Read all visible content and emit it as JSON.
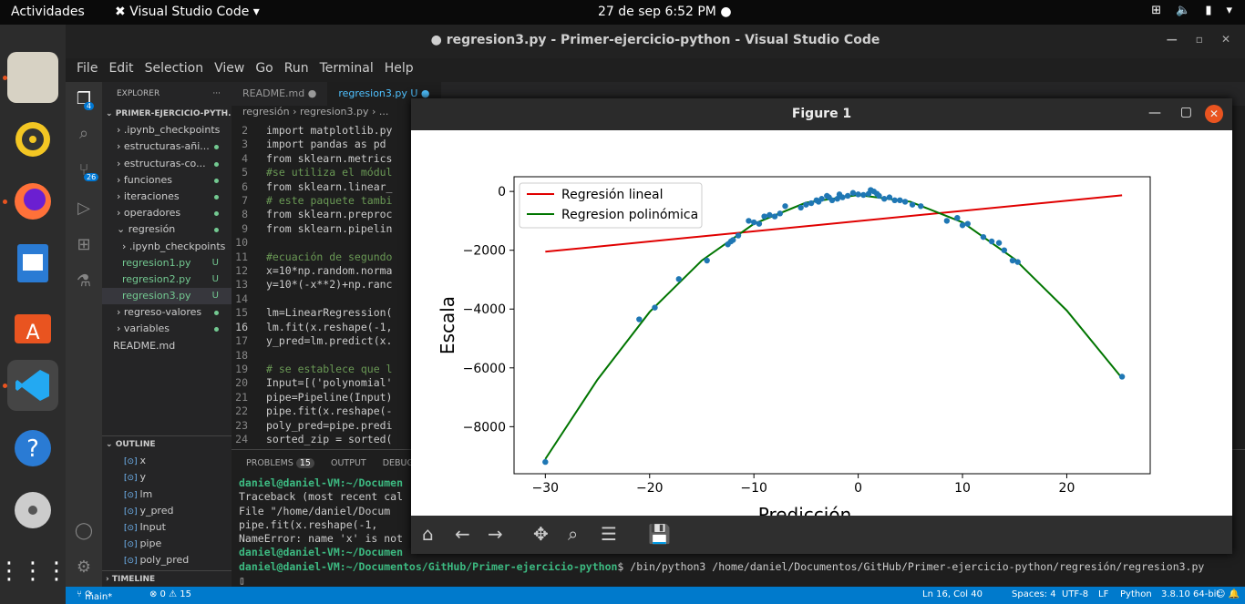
{
  "topbar": {
    "activities": "Actividades",
    "app": "Visual Studio Code",
    "clock": "27 de sep   6:52 PM"
  },
  "window": {
    "title": "● regresion3.py - Primer-ejercicio-python - Visual Studio Code"
  },
  "menu": [
    "File",
    "Edit",
    "Selection",
    "View",
    "Go",
    "Run",
    "Terminal",
    "Help"
  ],
  "activity": {
    "explorer_badge": "4",
    "scm_badge": "26"
  },
  "sidebar": {
    "header": "EXPLORER",
    "root": "PRIMER-EJERCICIO-PYTH...",
    "items": [
      {
        "label": "› .ipynb_checkpoints",
        "mark": ""
      },
      {
        "label": "› estructuras-añi...",
        "mark": "dot"
      },
      {
        "label": "› estructuras-co...",
        "mark": "dot"
      },
      {
        "label": "› funciones",
        "mark": "dot"
      },
      {
        "label": "› iteraciones",
        "mark": "dot"
      },
      {
        "label": "› operadores",
        "mark": "dot"
      },
      {
        "label": "⌄ regresión",
        "mark": "dot"
      },
      {
        "label": "› .ipynb_checkpoints",
        "mark": ""
      },
      {
        "label": "regresion1.py",
        "mark": "U"
      },
      {
        "label": "regresion2.py",
        "mark": "U"
      },
      {
        "label": "regresion3.py",
        "mark": "U"
      },
      {
        "label": "› regreso-valores",
        "mark": "dot"
      },
      {
        "label": "› variables",
        "mark": "dot"
      },
      {
        "label": "README.md",
        "mark": ""
      }
    ],
    "outline_header": "OUTLINE",
    "outline": [
      "x",
      "y",
      "lm",
      "y_pred",
      "Input",
      "pipe",
      "poly_pred"
    ],
    "timeline": "TIMELINE"
  },
  "tabs": [
    {
      "label": "README.md ●"
    },
    {
      "label": "regresion3.py U ●"
    }
  ],
  "breadcrumb": "regresión  ›  regresion3.py  ›  ...",
  "code": [
    {
      "n": "2",
      "t": "import matplotlib.py"
    },
    {
      "n": "3",
      "t": "import pandas as pd"
    },
    {
      "n": "4",
      "t": "from sklearn.metrics"
    },
    {
      "n": "5",
      "t": "#se utiliza el módul"
    },
    {
      "n": "6",
      "t": "from sklearn.linear_"
    },
    {
      "n": "7",
      "t": "# este paquete tambi"
    },
    {
      "n": "8",
      "t": "from sklearn.preproc"
    },
    {
      "n": "9",
      "t": "from sklearn.pipelin"
    },
    {
      "n": "10",
      "t": ""
    },
    {
      "n": "11",
      "t": "#ecuación de segundo"
    },
    {
      "n": "12",
      "t": "x=10*np.random.norma"
    },
    {
      "n": "13",
      "t": "y=10*(-x**2)+np.ranc"
    },
    {
      "n": "14",
      "t": ""
    },
    {
      "n": "15",
      "t": "lm=LinearRegression("
    },
    {
      "n": "16",
      "t": "lm.fit(x.reshape(-1,"
    },
    {
      "n": "17",
      "t": "y_pred=lm.predict(x."
    },
    {
      "n": "18",
      "t": ""
    },
    {
      "n": "19",
      "t": "# se establece que l"
    },
    {
      "n": "20",
      "t": "Input=[('polynomial'"
    },
    {
      "n": "21",
      "t": "pipe=Pipeline(Input)"
    },
    {
      "n": "22",
      "t": "pipe.fit(x.reshape(-"
    },
    {
      "n": "23",
      "t": "poly_pred=pipe.predi"
    },
    {
      "n": "24",
      "t": "sorted_zip = sorted("
    }
  ],
  "panel": {
    "problems": "PROBLEMS",
    "problems_count": "15",
    "output": "OUTPUT",
    "debug": "DEBUG"
  },
  "terminal": [
    {
      "prompt": "daniel@daniel-VM:~/Documen",
      "rest": ""
    },
    {
      "prompt": "",
      "rest": "Traceback (most recent cal"
    },
    {
      "prompt": "",
      "rest": "  File \"/home/daniel/Docum"
    },
    {
      "prompt": "",
      "rest": "    pipe.fit(x.reshape(-1,"
    },
    {
      "prompt": "",
      "rest": "NameError: name 'x' is not"
    },
    {
      "prompt": "daniel@daniel-VM:~/Documen",
      "rest": ""
    },
    {
      "prompt": "daniel@daniel-VM:~/Documentos/GitHub/Primer-ejercicio-python",
      "rest": "$ /bin/python3 /home/daniel/Documentos/GitHub/Primer-ejercicio-python/regresión/regresion3.py"
    }
  ],
  "status": {
    "branch": "main*",
    "errors": "⊗ 0 ⚠ 15",
    "pos": "Ln 16, Col 40",
    "spaces": "Spaces: 4",
    "enc": "UTF-8",
    "eol": "LF",
    "lang": "Python",
    "interp": "3.8.10 64-bit"
  },
  "figure": {
    "title": "Figure 1"
  },
  "chart_data": {
    "type": "scatter",
    "title": "",
    "xlabel": "Predicción",
    "ylabel": "Escala",
    "xlim": [
      -33,
      28
    ],
    "ylim": [
      -9600,
      500
    ],
    "xticks": [
      -30,
      -20,
      -10,
      0,
      10,
      20
    ],
    "yticks": [
      0,
      -2000,
      -4000,
      -6000,
      -8000
    ],
    "legend": {
      "position": "top-left",
      "entries": [
        {
          "name": "Regresión lineal",
          "color": "#e00000"
        },
        {
          "name": "Regresion polinómica",
          "color": "#007500"
        }
      ]
    },
    "point_color": "#1f77b4",
    "points": [
      [
        -30,
        -9200
      ],
      [
        -21,
        -4350
      ],
      [
        -19.5,
        -3950
      ],
      [
        -17.2,
        -2980
      ],
      [
        -14.5,
        -2350
      ],
      [
        -12.5,
        -1800
      ],
      [
        -12.2,
        -1700
      ],
      [
        -12,
        -1650
      ],
      [
        -11.5,
        -1500
      ],
      [
        -10.5,
        -1000
      ],
      [
        -10,
        -1050
      ],
      [
        -9.5,
        -1100
      ],
      [
        -9,
        -850
      ],
      [
        -8.5,
        -800
      ],
      [
        -8,
        -850
      ],
      [
        -7.5,
        -750
      ],
      [
        -7,
        -500
      ],
      [
        -5.5,
        -550
      ],
      [
        -5,
        -450
      ],
      [
        -4.5,
        -400
      ],
      [
        -4,
        -300
      ],
      [
        -3.8,
        -350
      ],
      [
        -3.5,
        -250
      ],
      [
        -3,
        -150
      ],
      [
        -2.8,
        -200
      ],
      [
        -2.5,
        -300
      ],
      [
        -2,
        -250
      ],
      [
        -1.8,
        -100
      ],
      [
        -1.5,
        -200
      ],
      [
        -1,
        -150
      ],
      [
        -0.5,
        -50
      ],
      [
        0,
        -100
      ],
      [
        0.5,
        -120
      ],
      [
        1,
        -80
      ],
      [
        1.2,
        50
      ],
      [
        1.5,
        0
      ],
      [
        1.8,
        -80
      ],
      [
        2,
        -150
      ],
      [
        2.5,
        -250
      ],
      [
        3,
        -200
      ],
      [
        3.5,
        -300
      ],
      [
        4,
        -300
      ],
      [
        4.5,
        -350
      ],
      [
        5.2,
        -450
      ],
      [
        6,
        -500
      ],
      [
        8.5,
        -1000
      ],
      [
        9.5,
        -900
      ],
      [
        10,
        -1150
      ],
      [
        10.5,
        -1100
      ],
      [
        12,
        -1550
      ],
      [
        12.8,
        -1700
      ],
      [
        13.5,
        -1750
      ],
      [
        14,
        -2000
      ],
      [
        14.8,
        -2350
      ],
      [
        15.3,
        -2400
      ],
      [
        25.3,
        -6300
      ]
    ],
    "series": [
      {
        "name": "Regresión lineal",
        "type": "line",
        "x": [
          -30,
          25.3
        ],
        "y": [
          -2050,
          -130
        ]
      },
      {
        "name": "Regresion polinómica",
        "type": "line",
        "x": [
          -30,
          -25,
          -20,
          -15,
          -10,
          -5,
          0,
          5,
          10,
          15,
          20,
          25.3
        ],
        "y": [
          -9100,
          -6400,
          -4100,
          -2350,
          -1100,
          -380,
          -120,
          -350,
          -1050,
          -2300,
          -4050,
          -6350
        ]
      }
    ]
  },
  "fig_toolbar": [
    "home-icon",
    "back-icon",
    "forward-icon",
    "pan-icon",
    "zoom-icon",
    "configure-icon",
    "save-icon"
  ]
}
